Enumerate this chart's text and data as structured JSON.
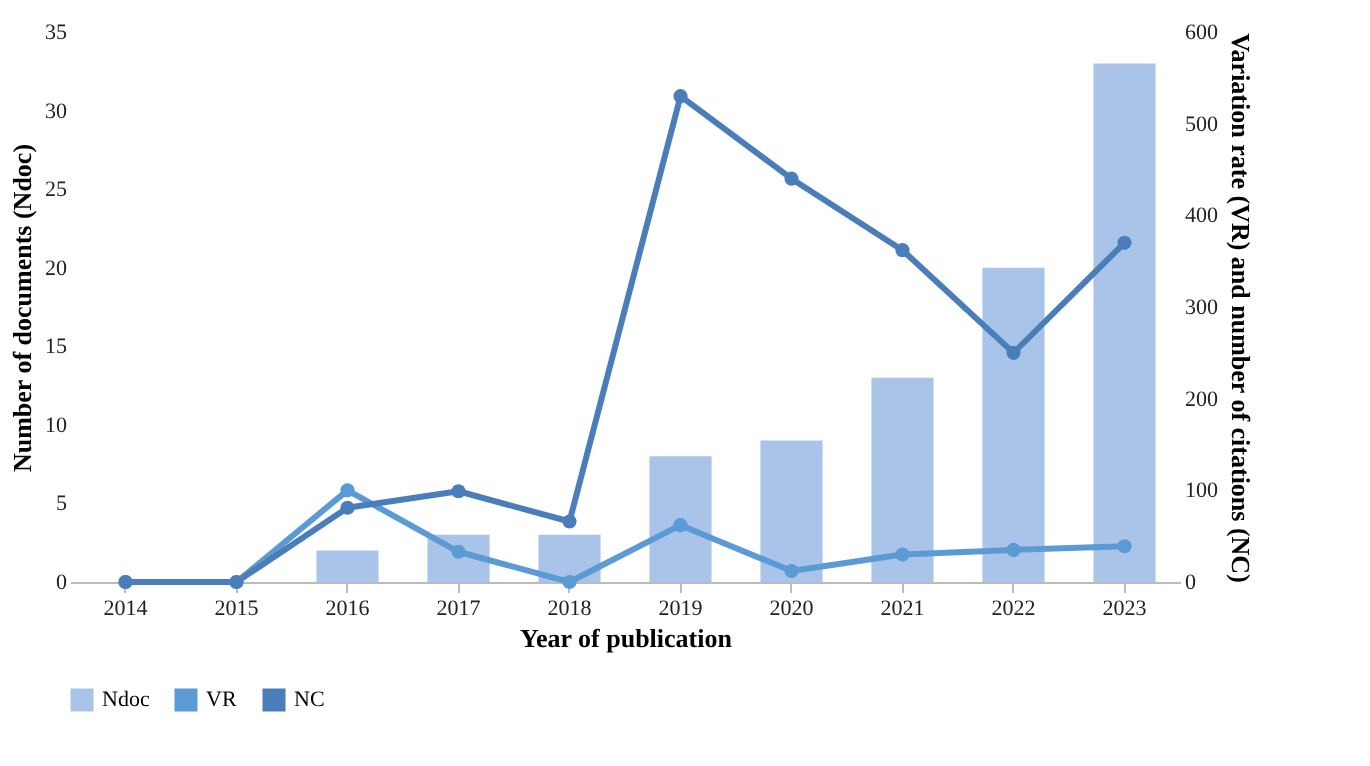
{
  "chart_data": {
    "type": "bar",
    "categories": [
      "2014",
      "2015",
      "2016",
      "2017",
      "2018",
      "2019",
      "2020",
      "2021",
      "2022",
      "2023"
    ],
    "series": [
      {
        "name": "Ndoc",
        "color": "#a9c4e8",
        "values": [
          0,
          0,
          2,
          3,
          3,
          8,
          9,
          13,
          20,
          33
        ]
      },
      {
        "name": "VR",
        "type": "line",
        "axis": "y2",
        "color": "#5b9bd5",
        "values": [
          0,
          0,
          100,
          33,
          0,
          62,
          12,
          30,
          35,
          39
        ]
      },
      {
        "name": "NC",
        "type": "line",
        "axis": "y2",
        "color": "#4a7ebb",
        "values": [
          0,
          0,
          81,
          99,
          66,
          530,
          440,
          362,
          250,
          370
        ]
      }
    ],
    "xlabel": "Year of publication",
    "ylabel": "Number of documents (Ndoc)",
    "y2label": "Variation rate (VR) and number of citations (NC)",
    "ylim": [
      0,
      35
    ],
    "yticks": [
      0,
      5,
      10,
      15,
      20,
      25,
      30,
      35
    ],
    "y2lim": [
      0,
      600
    ],
    "y2ticks": [
      0,
      100,
      200,
      300,
      400,
      500,
      600
    ],
    "legend": "bottom",
    "marker": "circle",
    "line_style": "solid"
  }
}
